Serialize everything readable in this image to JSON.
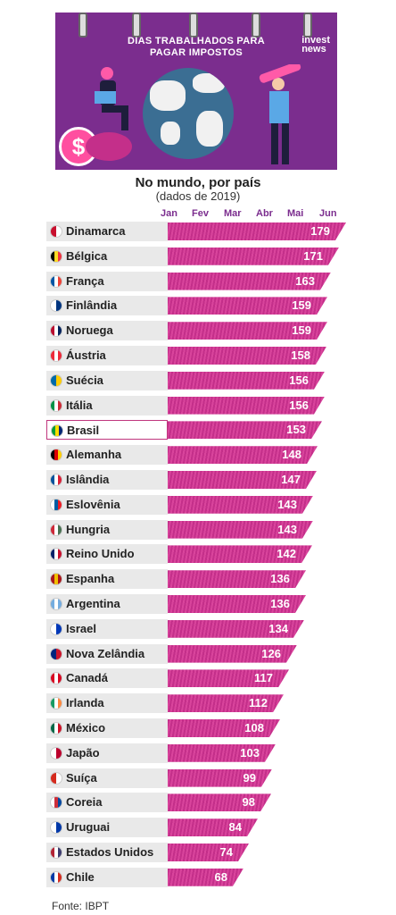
{
  "banner": {
    "title": "DIAS TRABALHADOS PARA PAGAR IMPOSTOS",
    "brand_line1": "invest",
    "brand_line2": "news",
    "coin_symbol": "$"
  },
  "source": "Fonte: IBPT",
  "colors": {
    "banner": "#7b2d8e",
    "bar": "#c42f8a",
    "highlight": "#c0367e"
  },
  "chart_data": {
    "type": "bar",
    "orientation": "horizontal",
    "title": "No mundo, por país",
    "subtitle": "(dados de 2019)",
    "month_ticks": [
      "Jan",
      "Fev",
      "Mar",
      "Abr",
      "Mai",
      "Jun"
    ],
    "highlighted": "Brasil",
    "categories": [
      "Dinamarca",
      "Bélgica",
      "França",
      "Finlândia",
      "Noruega",
      "Áustria",
      "Suécia",
      "Itália",
      "Brasil",
      "Alemanha",
      "Islândia",
      "Eslovênia",
      "Hungria",
      "Reino Unido",
      "Espanha",
      "Argentina",
      "Israel",
      "Nova Zelândia",
      "Canadá",
      "Irlanda",
      "México",
      "Japão",
      "Suíça",
      "Coreia",
      "Uruguai",
      "Estados Unidos",
      "Chile"
    ],
    "values": [
      179,
      171,
      163,
      159,
      159,
      158,
      156,
      156,
      153,
      148,
      147,
      143,
      143,
      142,
      136,
      136,
      134,
      126,
      117,
      112,
      108,
      103,
      99,
      98,
      84,
      74,
      68
    ],
    "flag_colors": [
      [
        "#c8102e",
        "#ffffff"
      ],
      [
        "#000000",
        "#fdda24",
        "#ef3340"
      ],
      [
        "#0055a4",
        "#ffffff",
        "#ef4135"
      ],
      [
        "#ffffff",
        "#003580"
      ],
      [
        "#ba0c2f",
        "#ffffff",
        "#00205b"
      ],
      [
        "#ed2939",
        "#ffffff",
        "#ed2939"
      ],
      [
        "#006aa7",
        "#fecc00"
      ],
      [
        "#009246",
        "#ffffff",
        "#ce2b37"
      ],
      [
        "#009c3b",
        "#ffdf00",
        "#002776"
      ],
      [
        "#000000",
        "#dd0000",
        "#ffce00"
      ],
      [
        "#02529c",
        "#ffffff",
        "#dc1e35"
      ],
      [
        "#ffffff",
        "#005da4",
        "#ed1c24"
      ],
      [
        "#ce2939",
        "#ffffff",
        "#477050"
      ],
      [
        "#012169",
        "#ffffff",
        "#c8102e"
      ],
      [
        "#aa151b",
        "#f1bf00",
        "#aa151b"
      ],
      [
        "#74acdf",
        "#ffffff",
        "#74acdf"
      ],
      [
        "#ffffff",
        "#0038b8"
      ],
      [
        "#00247d",
        "#cc142b"
      ],
      [
        "#d80621",
        "#ffffff",
        "#d80621"
      ],
      [
        "#169b62",
        "#ffffff",
        "#ff883e"
      ],
      [
        "#006847",
        "#ffffff",
        "#ce1126"
      ],
      [
        "#ffffff",
        "#bc002d"
      ],
      [
        "#d52b1e",
        "#ffffff"
      ],
      [
        "#ffffff",
        "#cd2e3a",
        "#0047a0"
      ],
      [
        "#ffffff",
        "#0038a8"
      ],
      [
        "#b22234",
        "#ffffff",
        "#3c3b6e"
      ],
      [
        "#0039a6",
        "#ffffff",
        "#d52b1e"
      ]
    ]
  }
}
